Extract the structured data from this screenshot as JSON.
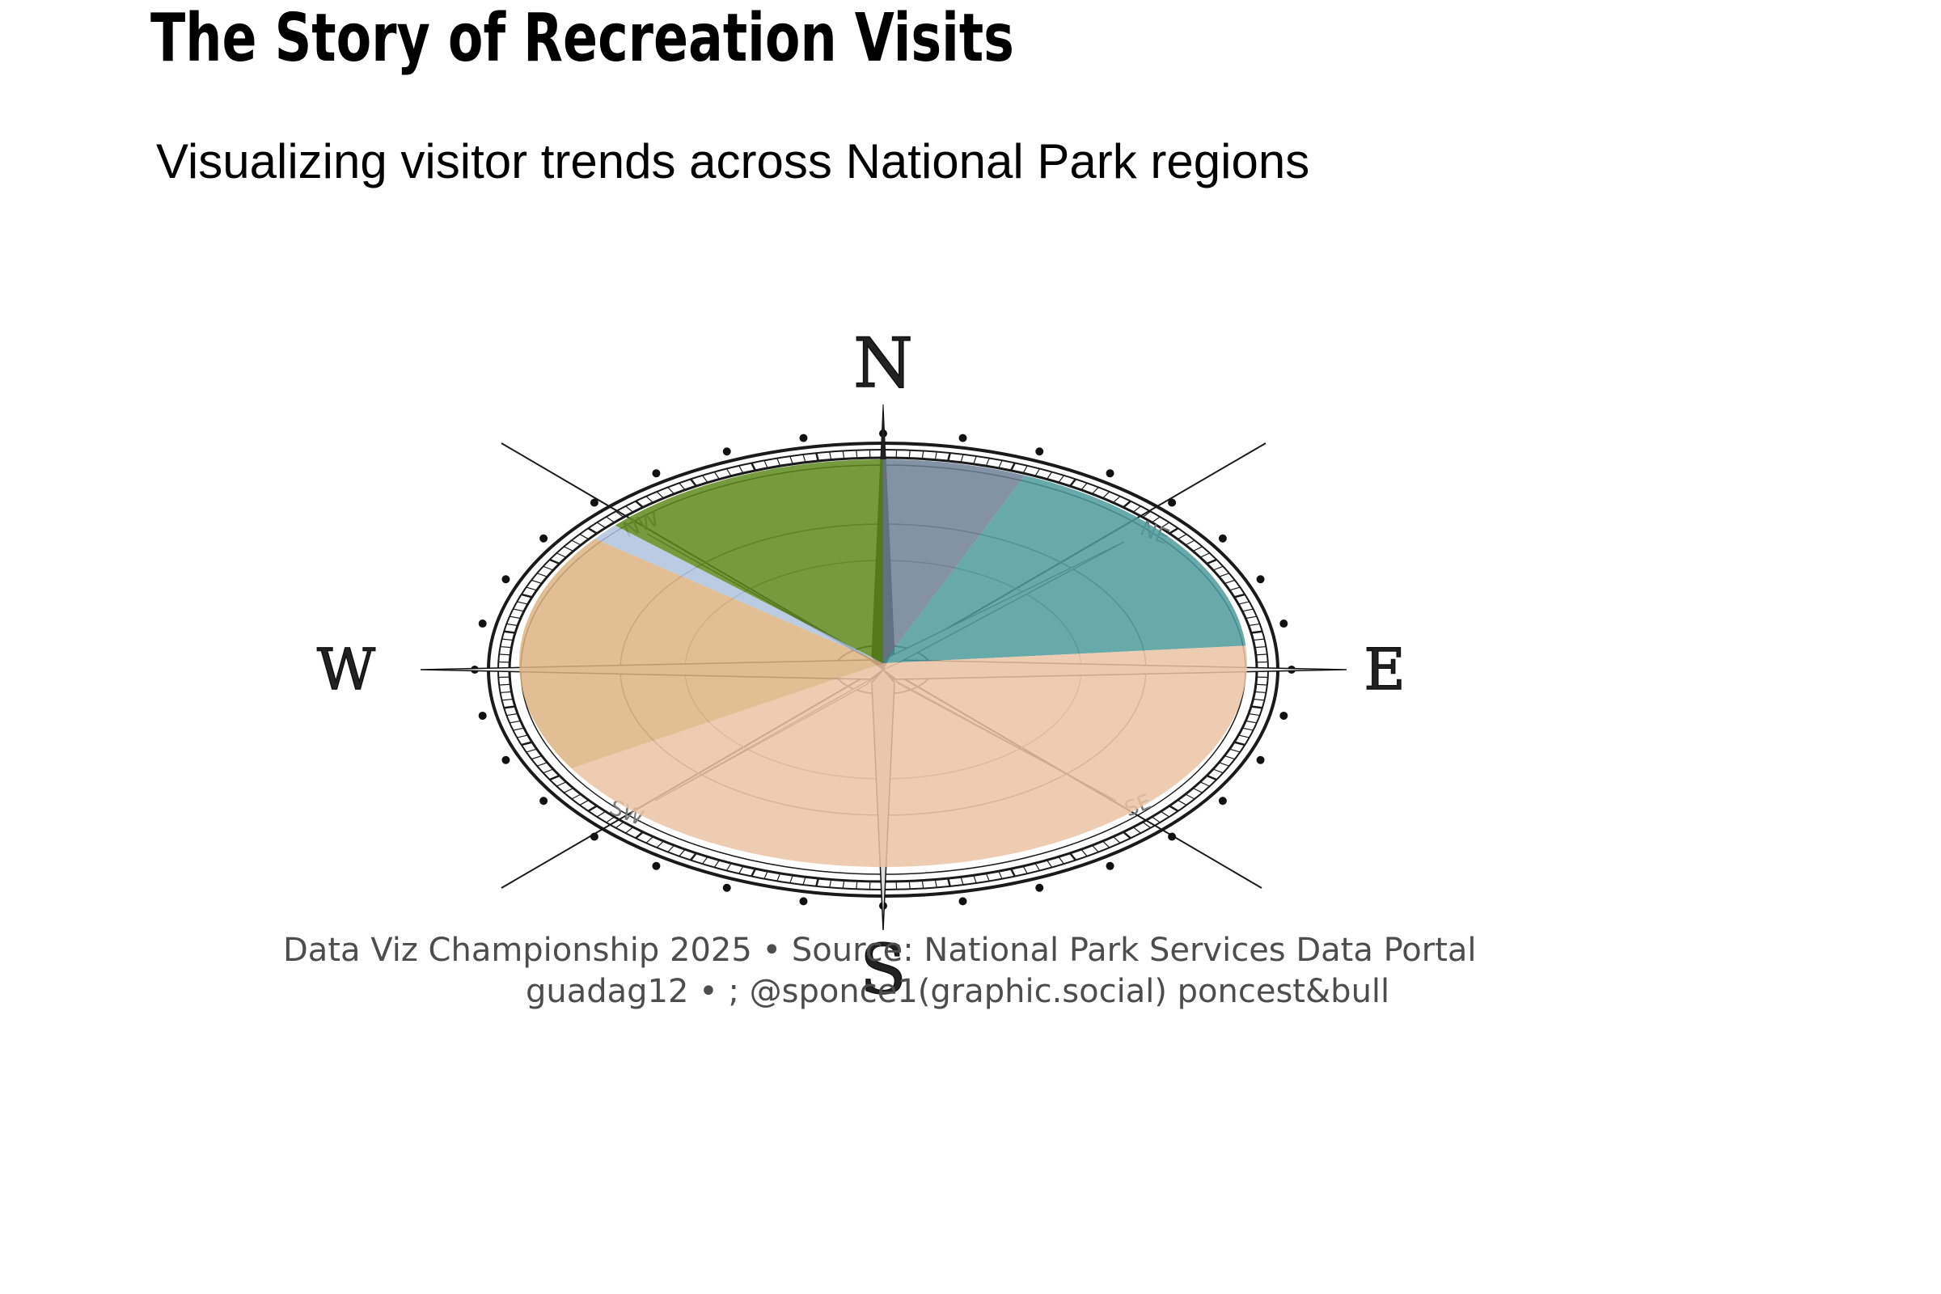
{
  "title": "The Story of Recreation Visits",
  "subtitle": "Visualizing visitor trends across National Park regions",
  "caption": {
    "line1": "Data Viz  Championship 2025 • Source: National Park Services Data Portal",
    "line2": "  guadag12 •  ; @sponce1(graphic.social)   poncest&bull"
  },
  "compass": {
    "north": "N",
    "south": "S",
    "east": "E",
    "west": "W",
    "ne": "NE",
    "nw": "NW",
    "se": "SE",
    "sw": "SW"
  },
  "chart_data": {
    "type": "pie",
    "title": "The Story of Recreation Visits",
    "subtitle": "Visualizing visitor trends across National Park regions",
    "slices": [
      {
        "value": 7,
        "color": "#6e7f96"
      },
      {
        "value": 19,
        "color": "#4e9a9b"
      },
      {
        "value": 47,
        "color": "#ebc3a3"
      },
      {
        "value": 21,
        "color": "#dcb380"
      },
      {
        "value": 1.5,
        "color": "#adc3de"
      },
      {
        "value": 14.5,
        "color": "#5d8a1c"
      }
    ],
    "start_angle_deg": 0,
    "direction": "clockwise"
  }
}
